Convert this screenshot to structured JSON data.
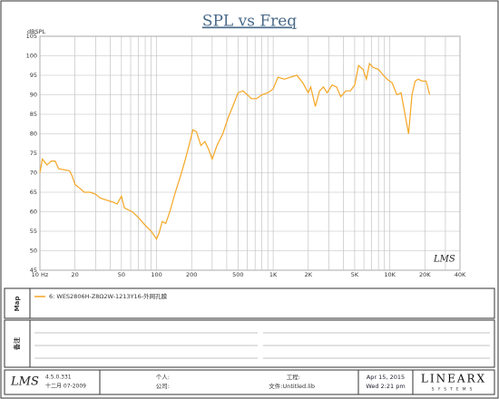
{
  "chart_data": {
    "type": "line",
    "title": "SPL vs Freq",
    "y_label": "dBSPL",
    "log_x": true,
    "grid": true,
    "xlim": [
      10,
      40000
    ],
    "ylim": [
      45,
      105
    ],
    "xticks": [
      {
        "value": 10,
        "label": "10 Hz"
      },
      20,
      50,
      100,
      200,
      500,
      {
        "value": 1000,
        "label": "1K"
      },
      {
        "value": 2000,
        "label": "2K"
      },
      {
        "value": 5000,
        "label": "5K"
      },
      {
        "value": 10000,
        "label": "10K"
      },
      {
        "value": 20000,
        "label": "20K"
      },
      {
        "value": 40000,
        "label": "40K"
      }
    ],
    "x_minor_ticks": [
      30,
      40,
      60,
      70,
      80,
      90,
      300,
      400,
      600,
      700,
      800,
      900,
      3000,
      4000,
      6000,
      7000,
      8000,
      9000,
      30000
    ],
    "yticks": [
      45,
      50,
      55,
      60,
      65,
      70,
      75,
      80,
      85,
      90,
      95,
      100,
      105
    ],
    "x": [
      10,
      10.5,
      11.5,
      12.5,
      13.5,
      14.5,
      16,
      18,
      19,
      20,
      22,
      24,
      27,
      30,
      33,
      37,
      42,
      46,
      50,
      53,
      57,
      62,
      70,
      80,
      90,
      100,
      105,
      112,
      120,
      130,
      145,
      160,
      175,
      190,
      205,
      220,
      240,
      260,
      280,
      300,
      330,
      370,
      410,
      450,
      500,
      550,
      600,
      650,
      720,
      800,
      900,
      1000,
      1100,
      1250,
      1400,
      1600,
      1800,
      2000,
      2100,
      2300,
      2500,
      2700,
      2900,
      3200,
      3500,
      3800,
      4200,
      4600,
      5000,
      5400,
      5900,
      6300,
      6700,
      7200,
      8000,
      8800,
      9500,
      10500,
      11500,
      12500,
      13500,
      14500,
      15500,
      16500,
      17500,
      19000,
      20500,
      22000
    ],
    "series": [
      {
        "name": "6: WES2806H-Z8Ω2W-1213Y16-外网孔膜",
        "color": "#f5a623",
        "values": [
          70,
          73.5,
          72,
          73,
          73,
          71,
          70.8,
          70.5,
          69,
          67,
          66,
          65,
          65,
          64.5,
          63.5,
          63,
          62.5,
          62,
          64,
          61,
          60.5,
          60,
          58.5,
          56.5,
          55,
          53,
          54.5,
          57.5,
          57,
          60,
          65,
          69,
          73,
          77,
          81,
          80.5,
          77,
          78,
          76,
          73.5,
          77,
          80,
          84,
          87,
          90.5,
          91,
          90,
          89,
          89,
          90,
          90.5,
          91.5,
          94.5,
          94,
          94.5,
          95,
          93,
          90.5,
          92,
          87,
          91,
          92,
          90.5,
          92.5,
          92,
          89.5,
          91,
          91,
          92.5,
          97.5,
          96.5,
          94,
          98,
          97,
          96.5,
          95,
          94,
          93,
          90,
          90.5,
          85,
          80,
          90,
          93.5,
          94,
          93.5,
          93.5,
          90
        ]
      }
    ],
    "watermark": "LMS"
  },
  "panels": {
    "map_label": "Map",
    "notes_label": "备注"
  },
  "footer": {
    "logo": "LMS",
    "version": "4.5.0.331",
    "build_date": "十二月 07-2009",
    "person": "个人:",
    "company": "公司:",
    "project": "工程:",
    "file": "文件:Untitled.lib",
    "date": "Apr 15, 2015",
    "time": "Wed  2:21 pm",
    "brand": "LINEARX",
    "brand_sub": "SYSTEMS"
  }
}
